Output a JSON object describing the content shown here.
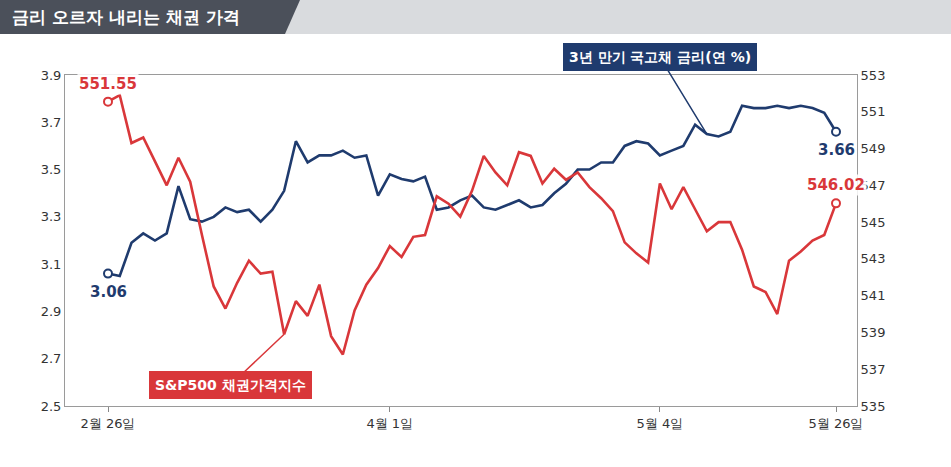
{
  "chart_data": {
    "type": "line",
    "title": "금리 오르자 내리는 채권 가격",
    "categories": [
      "2월 26일",
      null,
      null,
      null,
      null,
      null,
      null,
      null,
      null,
      null,
      null,
      null,
      null,
      null,
      null,
      null,
      null,
      null,
      null,
      null,
      null,
      null,
      null,
      null,
      "4월 1일",
      null,
      null,
      null,
      null,
      null,
      null,
      null,
      null,
      null,
      null,
      null,
      null,
      null,
      null,
      null,
      null,
      null,
      null,
      null,
      null,
      null,
      null,
      "5월 4일",
      null,
      null,
      null,
      null,
      null,
      null,
      null,
      null,
      null,
      null,
      null,
      null,
      null,
      null,
      "5월 26일"
    ],
    "series": [
      {
        "name": "3년 만기 국고채 금리(연 %)",
        "color": "#1f3b6e",
        "axis": "y",
        "values": [
          3.06,
          3.05,
          3.19,
          3.23,
          3.2,
          3.23,
          3.43,
          3.29,
          3.28,
          3.3,
          3.34,
          3.32,
          3.33,
          3.28,
          3.33,
          3.41,
          3.62,
          3.53,
          3.56,
          3.56,
          3.58,
          3.55,
          3.56,
          3.39,
          3.48,
          3.46,
          3.45,
          3.47,
          3.33,
          3.34,
          3.37,
          3.39,
          3.34,
          3.33,
          3.35,
          3.37,
          3.34,
          3.35,
          3.4,
          3.44,
          3.5,
          3.5,
          3.53,
          3.53,
          3.6,
          3.62,
          3.61,
          3.56,
          3.58,
          3.6,
          3.69,
          3.65,
          3.64,
          3.66,
          3.77,
          3.76,
          3.76,
          3.77,
          3.76,
          3.77,
          3.76,
          3.74,
          3.66
        ],
        "value_labels": [
          "3.06",
          null,
          null,
          null,
          null,
          null,
          null,
          null,
          null,
          null,
          null,
          null,
          null,
          null,
          null,
          null,
          null,
          null,
          null,
          null,
          null,
          null,
          null,
          null,
          null,
          null,
          null,
          null,
          null,
          null,
          null,
          null,
          null,
          null,
          null,
          null,
          null,
          null,
          null,
          null,
          null,
          null,
          null,
          null,
          null,
          null,
          null,
          null,
          null,
          null,
          null,
          null,
          null,
          null,
          null,
          null,
          null,
          null,
          null,
          null,
          null,
          null,
          "3.66"
        ]
      },
      {
        "name": "S&P500 채권가격지수",
        "color": "#d9373a",
        "axis": "y2",
        "values": [
          551.55,
          551.9,
          549.3,
          549.6,
          548.3,
          547.0,
          548.5,
          547.2,
          544.3,
          541.5,
          540.3,
          541.7,
          542.9,
          542.2,
          542.3,
          538.9,
          540.7,
          539.9,
          541.6,
          538.8,
          537.8,
          540.2,
          541.6,
          542.5,
          543.7,
          543.1,
          544.2,
          544.3,
          546.4,
          546.0,
          545.3,
          546.7,
          548.6,
          547.7,
          547.0,
          548.8,
          548.6,
          547.1,
          547.9,
          547.3,
          547.7,
          546.9,
          546.3,
          545.6,
          543.9,
          543.3,
          542.8,
          547.1,
          545.7,
          546.9,
          545.7,
          544.5,
          545.0,
          545.0,
          543.5,
          541.5,
          541.2,
          540.0,
          542.9,
          543.4,
          544.0,
          544.3,
          546.02
        ],
        "value_labels": [
          "551.55",
          null,
          null,
          null,
          null,
          null,
          null,
          null,
          null,
          null,
          null,
          null,
          null,
          null,
          null,
          null,
          null,
          null,
          null,
          null,
          null,
          null,
          null,
          null,
          null,
          null,
          null,
          null,
          null,
          null,
          null,
          null,
          null,
          null,
          null,
          null,
          null,
          null,
          null,
          null,
          null,
          null,
          null,
          null,
          null,
          null,
          null,
          null,
          null,
          null,
          null,
          null,
          null,
          null,
          null,
          null,
          null,
          null,
          null,
          null,
          null,
          null,
          "546.02"
        ]
      }
    ],
    "ylim": [
      2.5,
      3.9
    ],
    "yticks": [
      2.5,
      2.7,
      2.9,
      3.1,
      3.3,
      3.5,
      3.7,
      3.9
    ],
    "y2lim": [
      535,
      553
    ],
    "y2ticks": [
      535,
      537,
      539,
      541,
      543,
      545,
      547,
      549,
      551,
      553
    ],
    "grid": false
  }
}
